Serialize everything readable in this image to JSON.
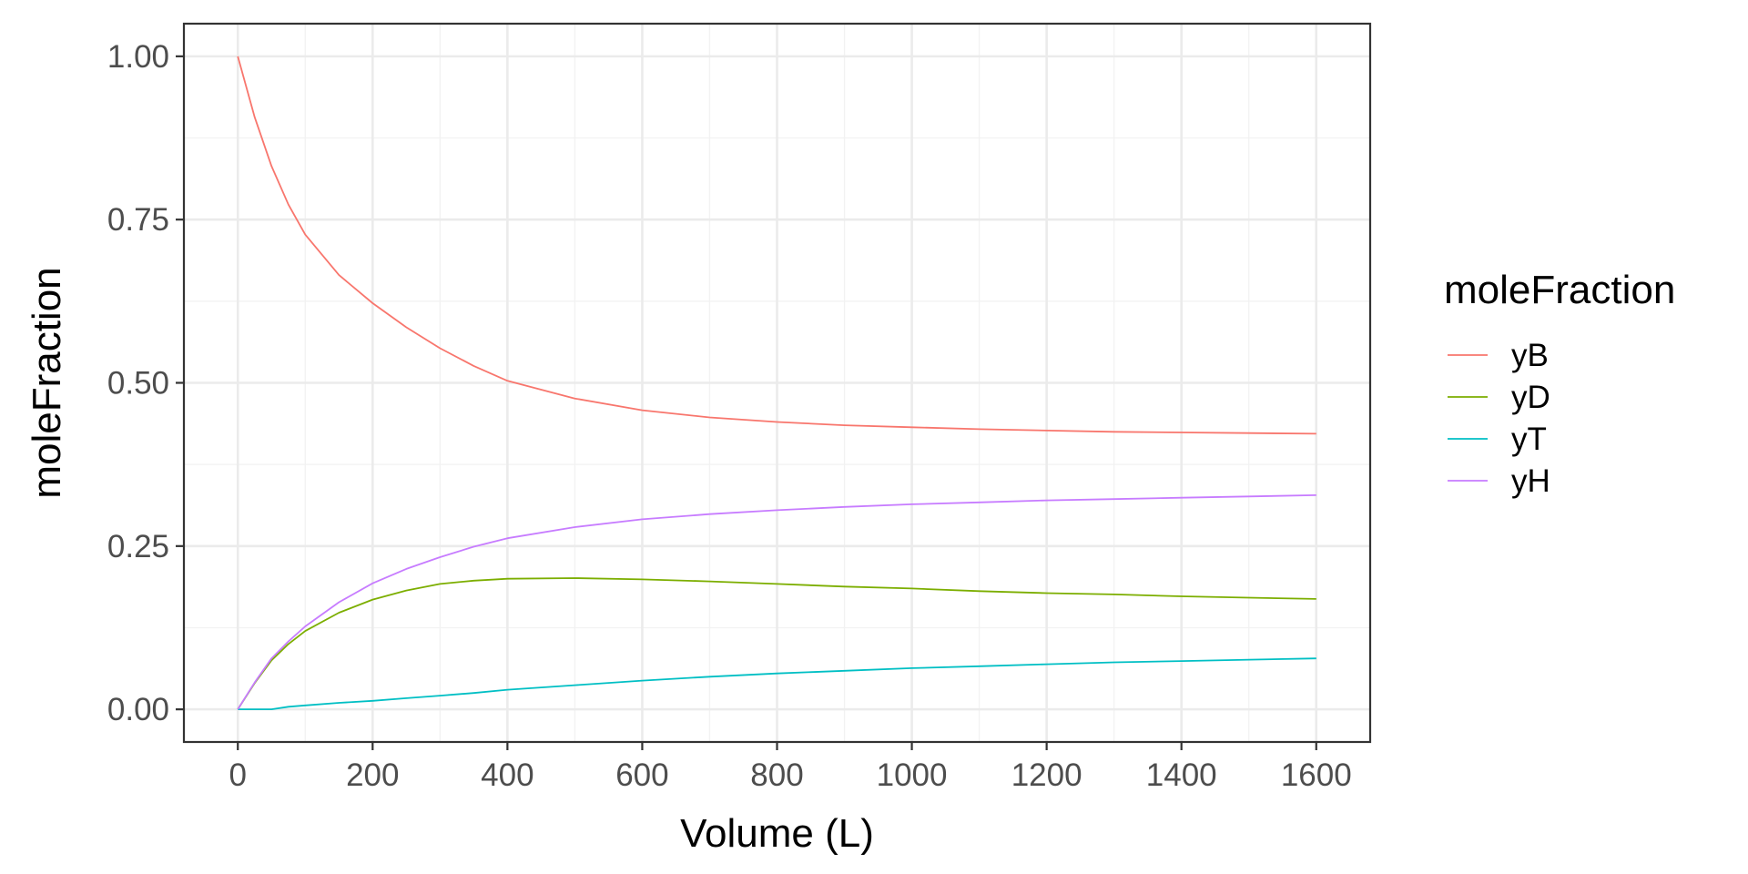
{
  "chart_data": {
    "type": "line",
    "title": "",
    "xlabel": "Volume (L)",
    "ylabel": "moleFraction",
    "xlim": [
      -80,
      1680
    ],
    "ylim": [
      -0.05,
      1.05
    ],
    "x_ticks": [
      0,
      200,
      400,
      600,
      800,
      1000,
      1200,
      1400,
      1600
    ],
    "x_tick_labels": [
      "0",
      "200",
      "400",
      "600",
      "800",
      "1000",
      "1200",
      "1400",
      "1600"
    ],
    "y_ticks": [
      0,
      0.25,
      0.5,
      0.75,
      1.0
    ],
    "y_tick_labels": [
      "0.00",
      "0.25",
      "0.50",
      "0.75",
      "1.00"
    ],
    "grid": true,
    "legend": {
      "title": "moleFraction",
      "position": "right"
    },
    "x": [
      0,
      25,
      50,
      75,
      100,
      150,
      200,
      250,
      300,
      350,
      400,
      500,
      600,
      700,
      800,
      900,
      1000,
      1100,
      1200,
      1300,
      1400,
      1500,
      1600
    ],
    "series": [
      {
        "name": "yB",
        "color": "#F8766D",
        "values": [
          1.0,
          0.907,
          0.832,
          0.773,
          0.727,
          0.665,
          0.622,
          0.585,
          0.553,
          0.526,
          0.503,
          0.476,
          0.458,
          0.447,
          0.44,
          0.435,
          0.432,
          0.429,
          0.427,
          0.425,
          0.424,
          0.423,
          0.422
        ]
      },
      {
        "name": "yD",
        "color": "#7CAE00",
        "values": [
          0.0,
          0.04,
          0.075,
          0.1,
          0.12,
          0.148,
          0.168,
          0.182,
          0.192,
          0.197,
          0.2,
          0.201,
          0.199,
          0.196,
          0.192,
          0.188,
          0.185,
          0.181,
          0.178,
          0.176,
          0.173,
          0.171,
          0.169
        ]
      },
      {
        "name": "yT",
        "color": "#00BFC4",
        "values": [
          0.0,
          0.0,
          0.0,
          0.004,
          0.006,
          0.01,
          0.013,
          0.017,
          0.021,
          0.025,
          0.03,
          0.037,
          0.044,
          0.05,
          0.055,
          0.059,
          0.063,
          0.066,
          0.069,
          0.072,
          0.074,
          0.076,
          0.078
        ]
      },
      {
        "name": "yH",
        "color": "#C77CFF",
        "values": [
          0.0,
          0.041,
          0.078,
          0.104,
          0.127,
          0.164,
          0.193,
          0.215,
          0.233,
          0.249,
          0.262,
          0.279,
          0.291,
          0.299,
          0.305,
          0.31,
          0.314,
          0.317,
          0.32,
          0.322,
          0.324,
          0.326,
          0.328
        ]
      }
    ]
  }
}
